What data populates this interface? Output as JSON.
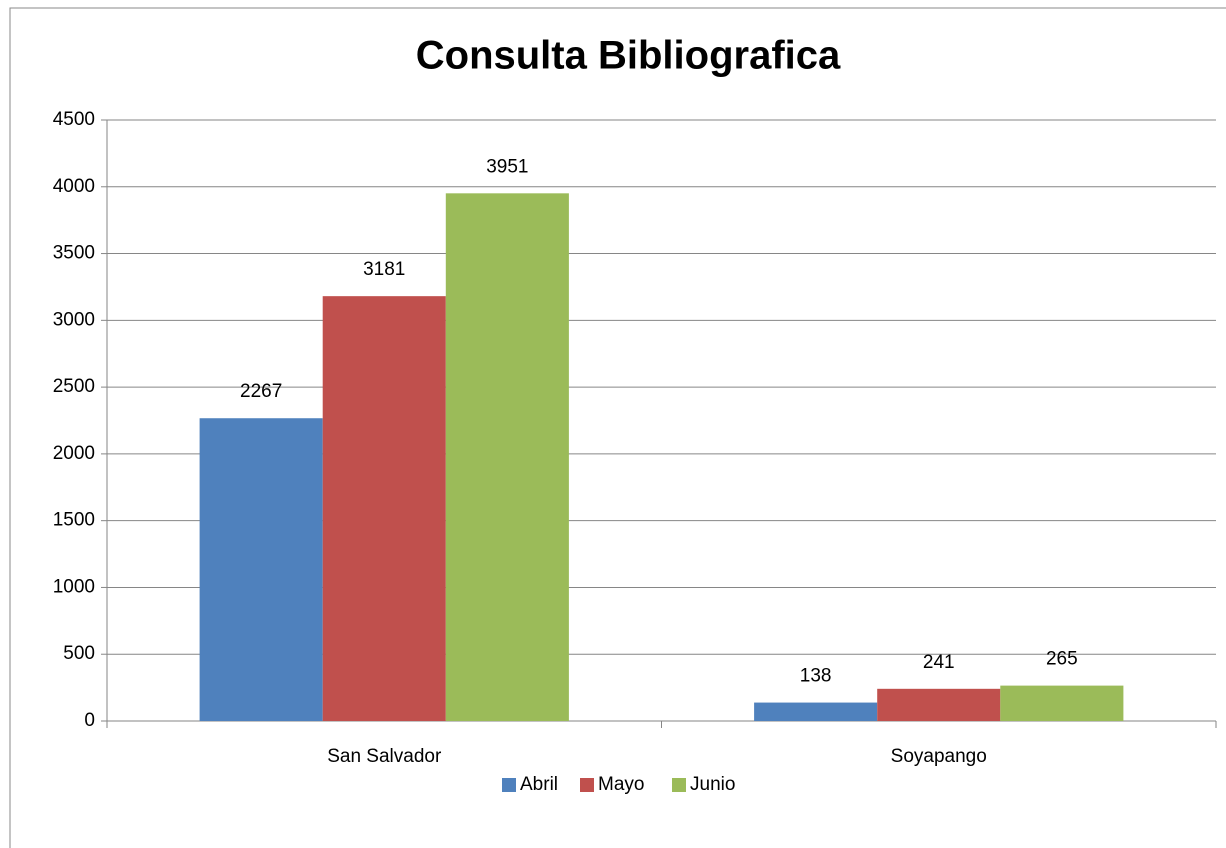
{
  "chart_data": {
    "type": "bar",
    "title": "Consulta Bibliografica",
    "categories": [
      "San Salvador",
      "Soyapango"
    ],
    "series": [
      {
        "name": "Abril",
        "color": "#4f81bd",
        "values": [
          2267,
          138
        ]
      },
      {
        "name": "Mayo",
        "color": "#c0504d",
        "values": [
          3181,
          241
        ]
      },
      {
        "name": "Junio",
        "color": "#9bbb59",
        "values": [
          3951,
          265
        ]
      }
    ],
    "ylim": [
      0,
      4500
    ],
    "yticks": [
      0,
      500,
      1000,
      1500,
      2000,
      2500,
      3000,
      3500,
      4000,
      4500
    ],
    "grid": true,
    "legend": "bottom"
  }
}
